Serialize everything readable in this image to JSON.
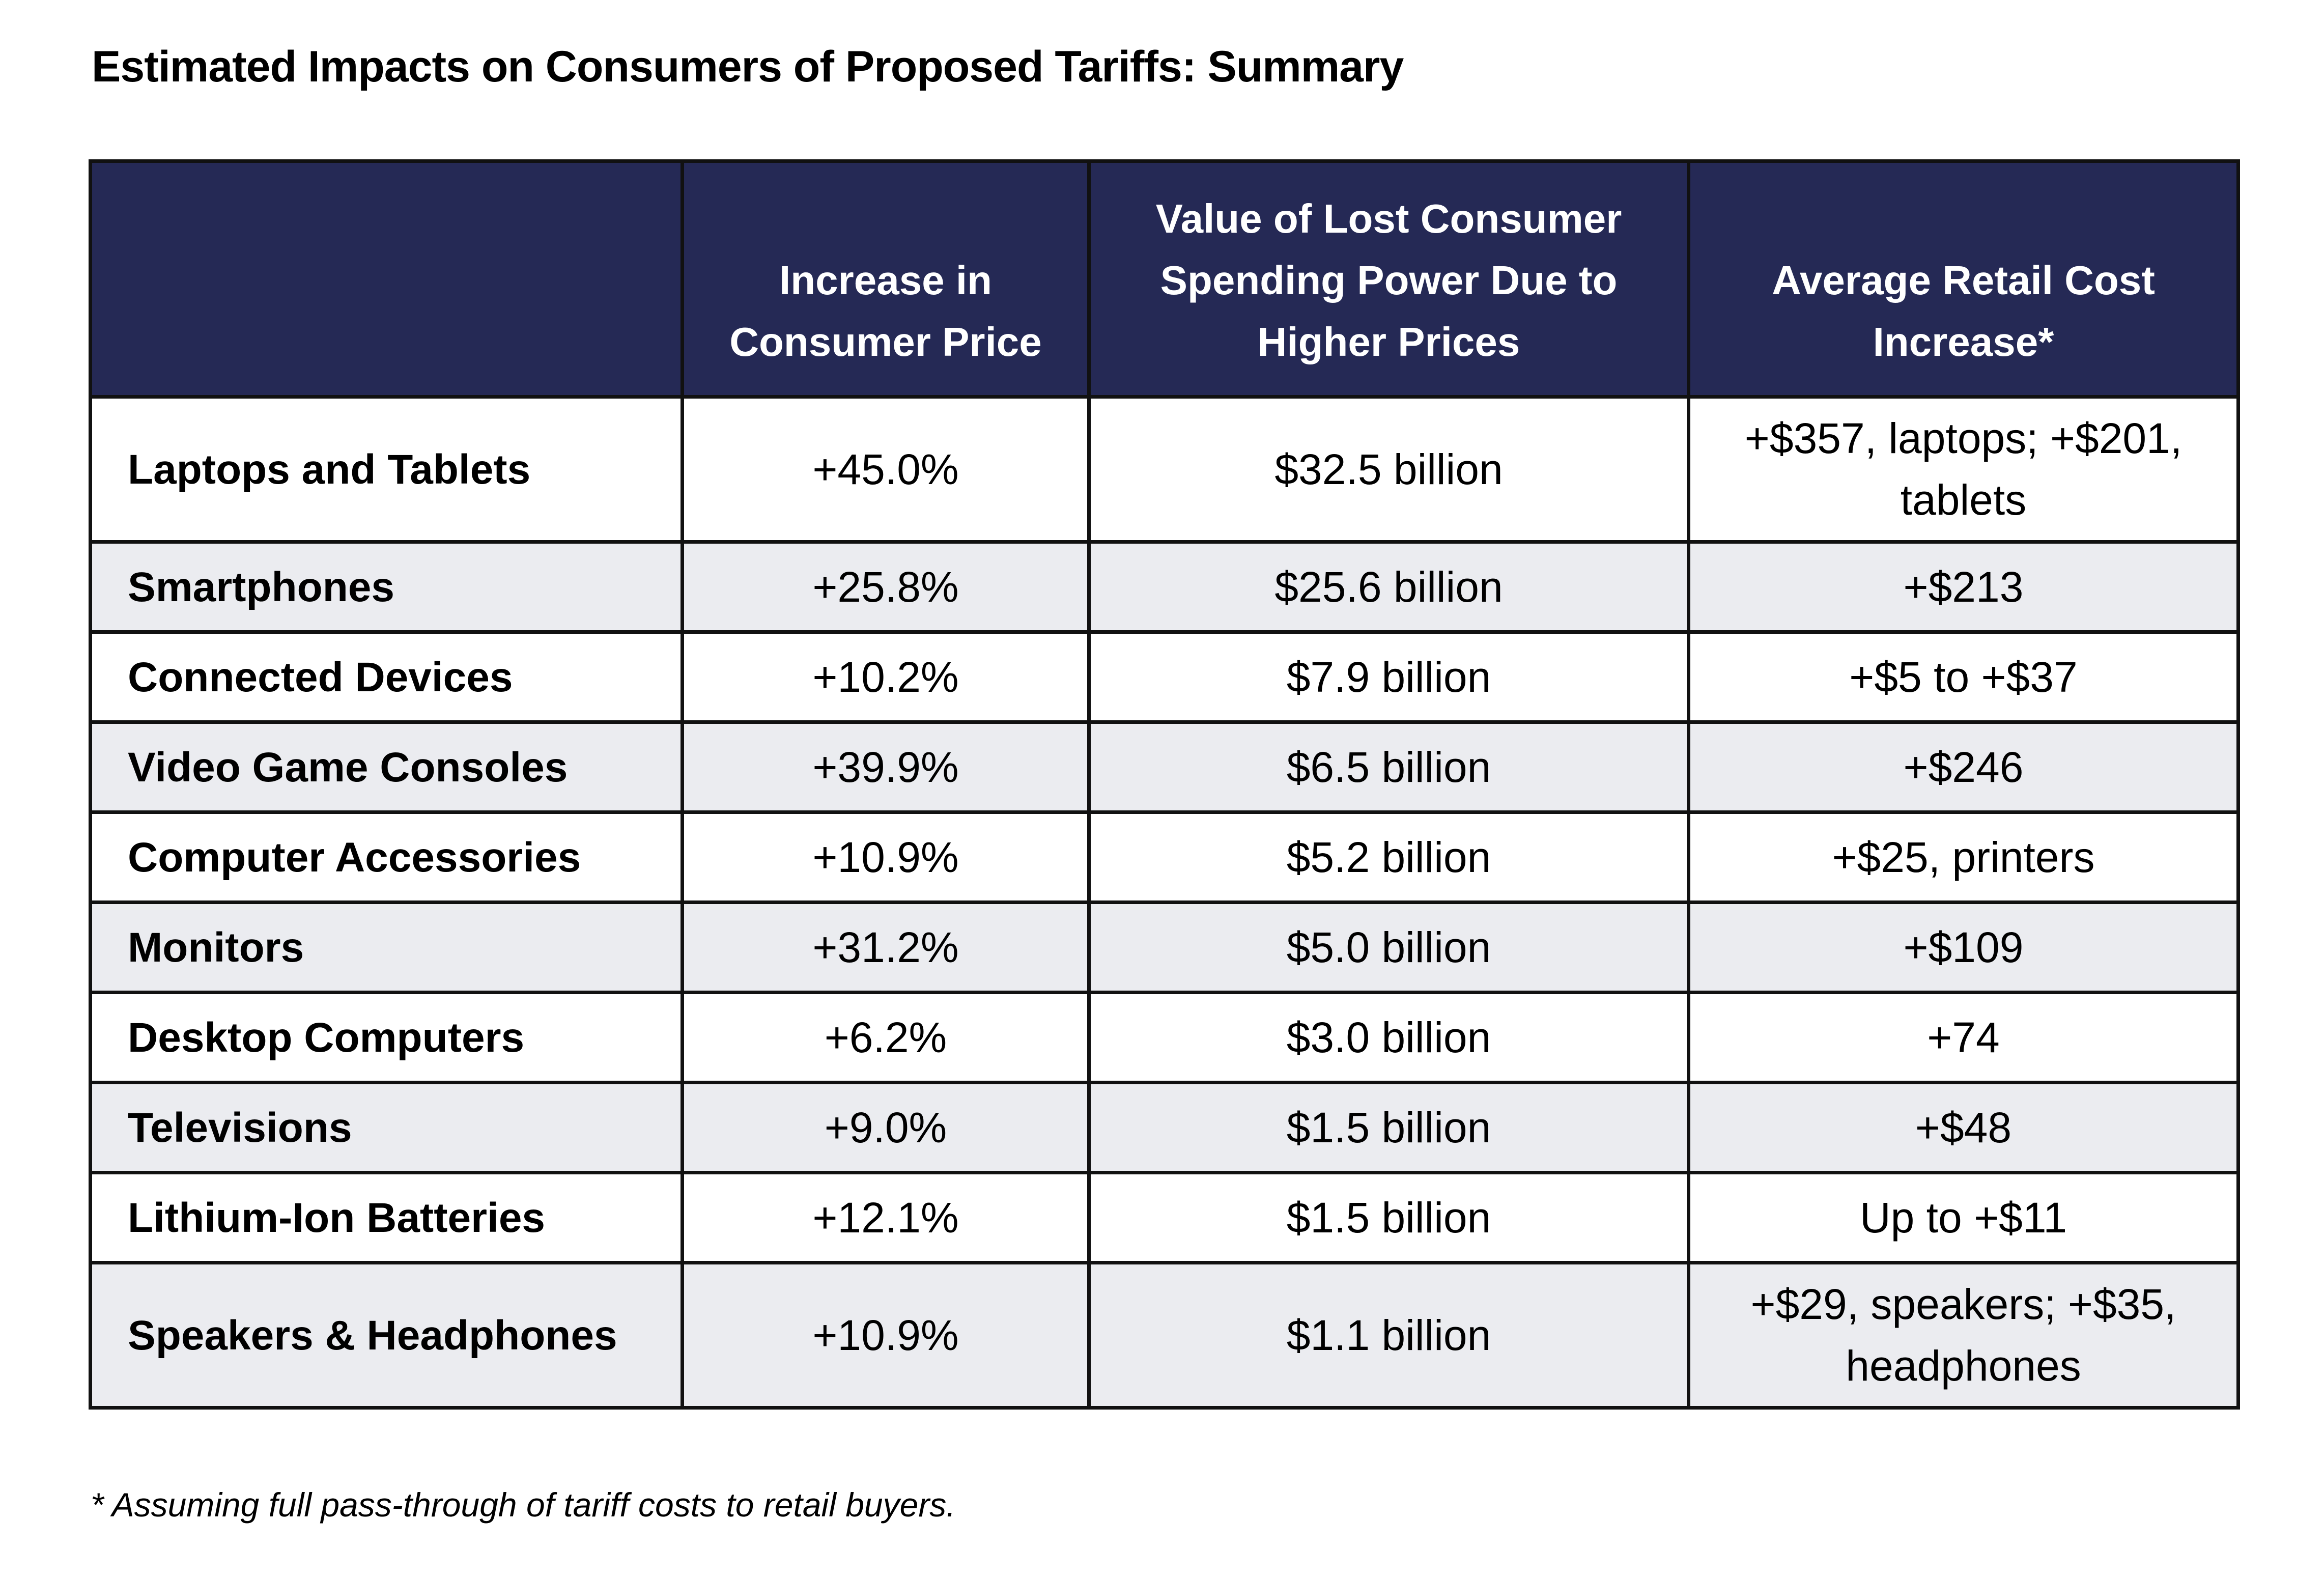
{
  "title": "Estimated Impacts on Consumers of Proposed Tariffs: Summary",
  "table": {
    "headers": [
      "",
      "Increase in Consumer Price",
      "Value of Lost Consumer Spending Power Due to Higher Prices",
      "Average Retail Cost Increase*"
    ],
    "rows": [
      {
        "category": "Laptops and Tablets",
        "price_increase": "+45.0%",
        "lost_spending": "$32.5 billion",
        "retail_cost": "+$357, laptops; +$201, tablets"
      },
      {
        "category": "Smartphones",
        "price_increase": "+25.8%",
        "lost_spending": "$25.6 billion",
        "retail_cost": "+$213"
      },
      {
        "category": "Connected Devices",
        "price_increase": "+10.2%",
        "lost_spending": "$7.9 billion",
        "retail_cost": "+$5 to +$37"
      },
      {
        "category": "Video Game Consoles",
        "price_increase": "+39.9%",
        "lost_spending": "$6.5 billion",
        "retail_cost": "+$246"
      },
      {
        "category": "Computer Accessories",
        "price_increase": "+10.9%",
        "lost_spending": "$5.2 billion",
        "retail_cost": "+$25, printers"
      },
      {
        "category": "Monitors",
        "price_increase": "+31.2%",
        "lost_spending": "$5.0 billion",
        "retail_cost": "+$109"
      },
      {
        "category": "Desktop Computers",
        "price_increase": "+6.2%",
        "lost_spending": "$3.0 billion",
        "retail_cost": "+74"
      },
      {
        "category": "Televisions",
        "price_increase": "+9.0%",
        "lost_spending": "$1.5 billion",
        "retail_cost": "+$48"
      },
      {
        "category": "Lithium-Ion Batteries",
        "price_increase": "+12.1%",
        "lost_spending": "$1.5 billion",
        "retail_cost": "Up to +$11"
      },
      {
        "category": "Speakers & Headphones",
        "price_increase": "+10.9%",
        "lost_spending": "$1.1 billion",
        "retail_cost": "+$29, speakers; +$35, headphones"
      }
    ]
  },
  "footnote": "* Assuming full pass-through of tariff costs to retail buyers.",
  "colors": {
    "header_bg": "#252955",
    "header_text": "#ffffff",
    "band_row": "#ebecf0",
    "border": "#111111"
  }
}
